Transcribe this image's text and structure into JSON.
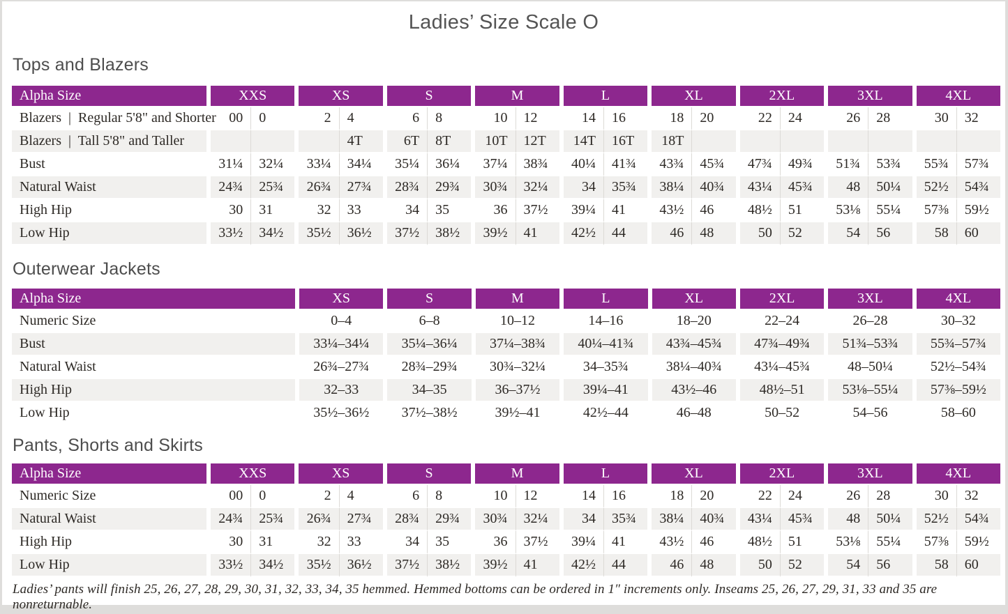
{
  "page": {
    "title": "Ladies’ Size Scale O"
  },
  "colors": {
    "header_bg": "#8d278e",
    "header_text": "#ffffff",
    "row_alt_bg": "#f1f0ee",
    "body_text": "#2d2925",
    "heading_text": "#4d4d4d"
  },
  "tables": [
    {
      "heading": "Tops and Blazers",
      "type": "paired",
      "label_header": "Alpha Size",
      "sizes": [
        "XXS",
        "XS",
        "S",
        "M",
        "L",
        "XL",
        "2XL",
        "3XL",
        "4XL"
      ],
      "rows": [
        {
          "label": "Blazers  |  Regular 5'8\" and Shorter",
          "values": [
            "00",
            "0",
            "2",
            "4",
            "6",
            "8",
            "10",
            "12",
            "14",
            "16",
            "18",
            "20",
            "22",
            "24",
            "26",
            "28",
            "30",
            "32"
          ]
        },
        {
          "label": "Blazers  |  Tall 5'8\" and Taller",
          "values": [
            "",
            "",
            "",
            "4T",
            "6T",
            "8T",
            "10T",
            "12T",
            "14T",
            "16T",
            "18T",
            "",
            "",
            "",
            "",
            "",
            "",
            ""
          ]
        },
        {
          "label": "Bust",
          "values": [
            "31¼",
            "32¼",
            "33¼",
            "34¼",
            "35¼",
            "36¼",
            "37¼",
            "38¾",
            "40¼",
            "41¾",
            "43¾",
            "45¾",
            "47¾",
            "49¾",
            "51¾",
            "53¾",
            "55¾",
            "57¾"
          ]
        },
        {
          "label": "Natural Waist",
          "values": [
            "24¾",
            "25¾",
            "26¾",
            "27¾",
            "28¾",
            "29¾",
            "30¾",
            "32¼",
            "34",
            "35¾",
            "38¼",
            "40¾",
            "43¼",
            "45¾",
            "48",
            "50¼",
            "52½",
            "54¾"
          ]
        },
        {
          "label": "High Hip",
          "values": [
            "30",
            "31",
            "32",
            "33",
            "34",
            "35",
            "36",
            "37½",
            "39¼",
            "41",
            "43½",
            "46",
            "48½",
            "51",
            "53⅛",
            "55¼",
            "57⅜",
            "59½"
          ]
        },
        {
          "label": "Low Hip",
          "values": [
            "33½",
            "34½",
            "35½",
            "36½",
            "37½",
            "38½",
            "39½",
            "41",
            "42½",
            "44",
            "46",
            "48",
            "50",
            "52",
            "54",
            "56",
            "58",
            "60"
          ]
        }
      ]
    },
    {
      "heading": "Outerwear Jackets",
      "type": "single",
      "label_header": "Alpha Size",
      "sizes": [
        "XS",
        "S",
        "M",
        "L",
        "XL",
        "2XL",
        "3XL",
        "4XL"
      ],
      "rows": [
        {
          "label": "Numeric Size",
          "values": [
            "0–4",
            "6–8",
            "10–12",
            "14–16",
            "18–20",
            "22–24",
            "26–28",
            "30–32"
          ]
        },
        {
          "label": "Bust",
          "values": [
            "33¼–34¼",
            "35¼–36¼",
            "37¼–38¾",
            "40¼–41¾",
            "43¾–45¾",
            "47¾–49¾",
            "51¾–53¾",
            "55¾–57¾"
          ]
        },
        {
          "label": "Natural Waist",
          "values": [
            "26¾–27¾",
            "28¾–29¾",
            "30¾–32¼",
            "34–35¾",
            "38¼–40¾",
            "43¼–45¾",
            "48–50¼",
            "52½–54¾"
          ]
        },
        {
          "label": "High Hip",
          "values": [
            "32–33",
            "34–35",
            "36–37½",
            "39¼–41",
            "43½–46",
            "48½–51",
            "53⅛–55¼",
            "57⅜–59½"
          ]
        },
        {
          "label": "Low Hip",
          "values": [
            "35½–36½",
            "37½–38½",
            "39½–41",
            "42½–44",
            "46–48",
            "50–52",
            "54–56",
            "58–60"
          ]
        }
      ]
    },
    {
      "heading": "Pants, Shorts and Skirts",
      "type": "paired",
      "label_header": "Alpha Size",
      "sizes": [
        "XXS",
        "XS",
        "S",
        "M",
        "L",
        "XL",
        "2XL",
        "3XL",
        "4XL"
      ],
      "rows": [
        {
          "label": "Numeric Size",
          "values": [
            "00",
            "0",
            "2",
            "4",
            "6",
            "8",
            "10",
            "12",
            "14",
            "16",
            "18",
            "20",
            "22",
            "24",
            "26",
            "28",
            "30",
            "32"
          ]
        },
        {
          "label": "Natural Waist",
          "values": [
            "24¾",
            "25¾",
            "26¾",
            "27¾",
            "28¾",
            "29¾",
            "30¾",
            "32¼",
            "34",
            "35¾",
            "38¼",
            "40¾",
            "43¼",
            "45¾",
            "48",
            "50¼",
            "52½",
            "54¾"
          ]
        },
        {
          "label": "High Hip",
          "values": [
            "30",
            "31",
            "32",
            "33",
            "34",
            "35",
            "36",
            "37½",
            "39¼",
            "41",
            "43½",
            "46",
            "48½",
            "51",
            "53⅛",
            "55¼",
            "57⅜",
            "59½"
          ]
        },
        {
          "label": "Low Hip",
          "values": [
            "33½",
            "34½",
            "35½",
            "36½",
            "37½",
            "38½",
            "39½",
            "41",
            "42½",
            "44",
            "46",
            "48",
            "50",
            "52",
            "54",
            "56",
            "58",
            "60"
          ]
        }
      ]
    }
  ],
  "footnote": "Ladies’ pants will finish 25, 26, 27, 28, 29, 30, 31, 32, 33, 34, 35 hemmed. Hemmed bottoms can be ordered in 1″ increments only. Inseams 25, 26, 27, 29, 31, 33 and 35 are nonreturnable."
}
